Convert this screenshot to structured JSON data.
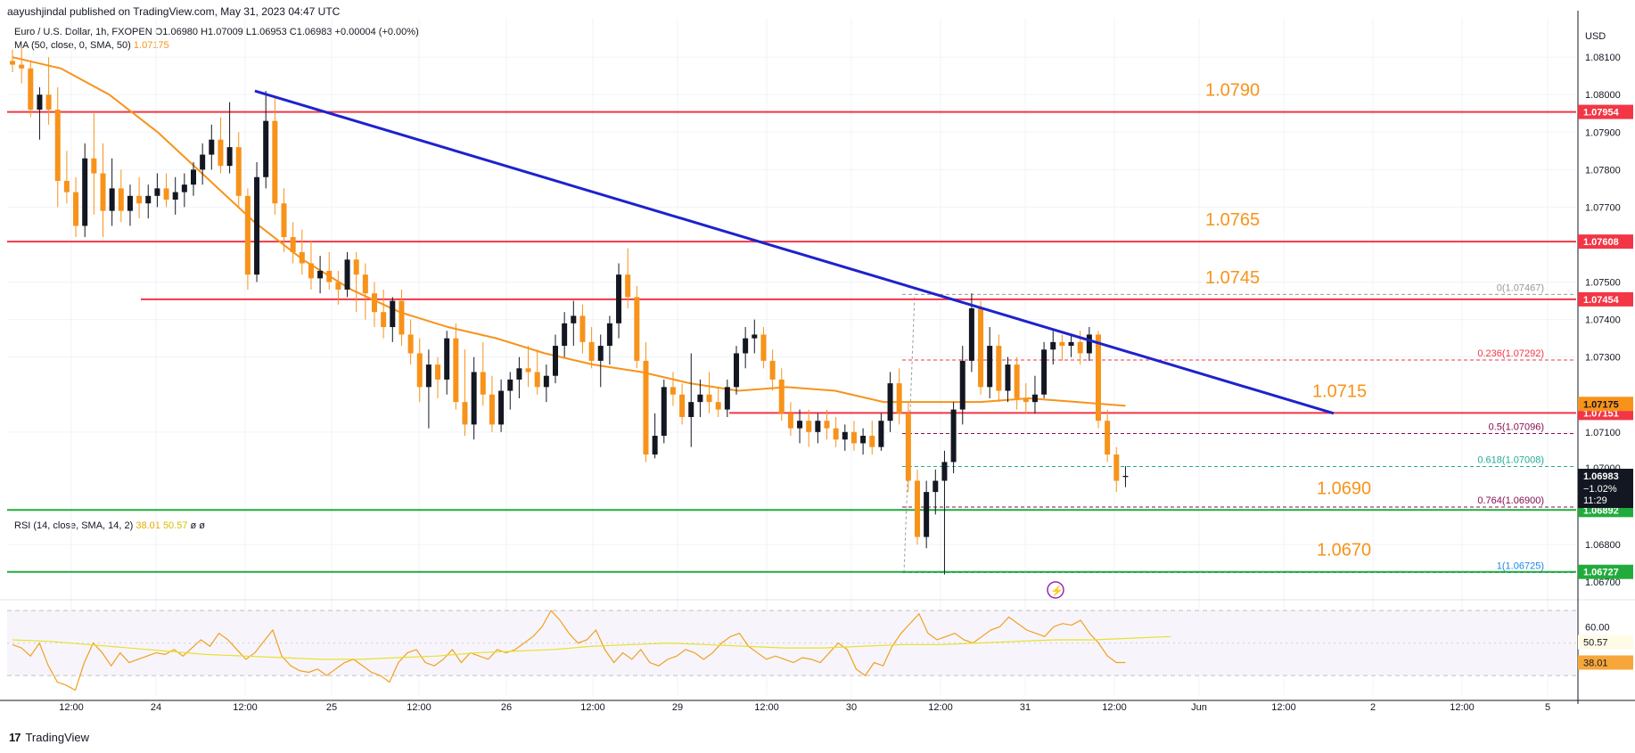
{
  "header": "aayushjindal published on TradingView.com, May 31, 2023 04:47 UTC",
  "legend": {
    "line1": "Euro / U.S. Dollar, 1h, FXOPEN  O1.06980  H1.07009  L1.06953  C1.06983  +0.00004 (+0.00%)",
    "line2_label": "MA (50, close, 0, SMA, 50)",
    "line2_value": "1.07175",
    "rsi_label": "RSI (14, close, SMA, 14, 2)",
    "rsi_value": "38.01",
    "rsi_ma_value": "50.57",
    "rsi_tail": "ø  ø"
  },
  "footer": {
    "brand": "TradingView",
    "logo": "17"
  },
  "colors": {
    "up": "#131722",
    "down": "#f7931a",
    "ma": "#f7931a",
    "trend": "#1e22cc",
    "resistance": "#f23645",
    "support": "#22ab3d",
    "label": "#f7931a",
    "rsi": "#f0a020",
    "rsi_ma": "#e8e030"
  },
  "chart_data": {
    "type": "candlestick",
    "symbol": "Euro / U.S. Dollar",
    "timeframe": "1h",
    "currency": "USD",
    "ylim": [
      1.06655,
      1.08205
    ],
    "y_ticks": [
      "1.08100",
      "1.08000",
      "1.07900",
      "1.07800",
      "1.07700",
      "1.07500",
      "1.07400",
      "1.07300",
      "1.07100",
      "1.06800"
    ],
    "y_tick_values": [
      1.081,
      1.08,
      1.079,
      1.078,
      1.077,
      1.075,
      1.074,
      1.073,
      1.071,
      1.068
    ],
    "y_partial_ticks": [
      "1.07000",
      "1.06700"
    ],
    "x_ticks": [
      "12:00",
      "24",
      "12:00",
      "25",
      "12:00",
      "26",
      "12:00",
      "29",
      "12:00",
      "30",
      "12:00",
      "31",
      "12:00",
      "Jun",
      "12:00",
      "2",
      "12:00",
      "5"
    ],
    "candles": [
      [
        1.0809,
        1.0812,
        1.0806,
        1.0808
      ],
      [
        1.0808,
        1.0813,
        1.0803,
        1.0807
      ],
      [
        1.0807,
        1.0809,
        1.0794,
        1.0796
      ],
      [
        1.0796,
        1.0802,
        1.0788,
        1.08
      ],
      [
        1.08,
        1.081,
        1.0792,
        1.0796
      ],
      [
        1.0796,
        1.0802,
        1.077,
        1.0777
      ],
      [
        1.0777,
        1.0785,
        1.0771,
        1.0774
      ],
      [
        1.0774,
        1.0778,
        1.0762,
        1.0765
      ],
      [
        1.0765,
        1.0787,
        1.0762,
        1.0783
      ],
      [
        1.0783,
        1.0795,
        1.0768,
        1.0779
      ],
      [
        1.0779,
        1.0787,
        1.0762,
        1.0769
      ],
      [
        1.0769,
        1.0783,
        1.0765,
        1.0775
      ],
      [
        1.0775,
        1.078,
        1.0766,
        1.0769
      ],
      [
        1.0769,
        1.0776,
        1.0765,
        1.0773
      ],
      [
        1.0773,
        1.0778,
        1.0767,
        1.0771
      ],
      [
        1.0771,
        1.0776,
        1.0767,
        1.0773
      ],
      [
        1.0773,
        1.0779,
        1.077,
        1.0775
      ],
      [
        1.0775,
        1.0779,
        1.077,
        1.0772
      ],
      [
        1.0772,
        1.0778,
        1.0768,
        1.0774
      ],
      [
        1.0774,
        1.0779,
        1.077,
        1.0776
      ],
      [
        1.0776,
        1.0782,
        1.0773,
        1.078
      ],
      [
        1.078,
        1.0787,
        1.0776,
        1.0784
      ],
      [
        1.0784,
        1.0792,
        1.078,
        1.0788
      ],
      [
        1.0788,
        1.0794,
        1.0779,
        1.0781
      ],
      [
        1.0781,
        1.0798,
        1.0779,
        1.0786
      ],
      [
        1.0786,
        1.079,
        1.077,
        1.0773
      ],
      [
        1.0773,
        1.0775,
        1.0748,
        1.0752
      ],
      [
        1.0752,
        1.0782,
        1.075,
        1.0778
      ],
      [
        1.0778,
        1.0801,
        1.0775,
        1.0793
      ],
      [
        1.0793,
        1.0799,
        1.0768,
        1.0771
      ],
      [
        1.0771,
        1.0775,
        1.0758,
        1.0762
      ],
      [
        1.0762,
        1.0766,
        1.0755,
        1.0758
      ],
      [
        1.0758,
        1.0764,
        1.0752,
        1.0755
      ],
      [
        1.0755,
        1.0761,
        1.0748,
        1.0751
      ],
      [
        1.0751,
        1.0757,
        1.0747,
        1.0753
      ],
      [
        1.0753,
        1.0758,
        1.0748,
        1.075
      ],
      [
        1.075,
        1.0753,
        1.0744,
        1.0748
      ],
      [
        1.0748,
        1.0758,
        1.0746,
        1.0756
      ],
      [
        1.0756,
        1.0758,
        1.0742,
        1.0752
      ],
      [
        1.0752,
        1.0755,
        1.074,
        1.0747
      ],
      [
        1.0747,
        1.075,
        1.0738,
        1.0742
      ],
      [
        1.0742,
        1.0748,
        1.0735,
        1.0738
      ],
      [
        1.0738,
        1.0746,
        1.0734,
        1.0745
      ],
      [
        1.0745,
        1.0748,
        1.0733,
        1.0736
      ],
      [
        1.0736,
        1.074,
        1.0728,
        1.0731
      ],
      [
        1.0731,
        1.0735,
        1.0718,
        1.0722
      ],
      [
        1.0722,
        1.0732,
        1.0711,
        1.0728
      ],
      [
        1.0728,
        1.073,
        1.0719,
        1.0724
      ],
      [
        1.0724,
        1.0737,
        1.072,
        1.0735
      ],
      [
        1.0735,
        1.0739,
        1.0716,
        1.0718
      ],
      [
        1.0718,
        1.0732,
        1.0709,
        1.0712
      ],
      [
        1.0712,
        1.073,
        1.0708,
        1.0726
      ],
      [
        1.0726,
        1.0734,
        1.0717,
        1.072
      ],
      [
        1.072,
        1.0725,
        1.071,
        1.0712
      ],
      [
        1.0712,
        1.0724,
        1.071,
        1.0721
      ],
      [
        1.0721,
        1.0726,
        1.0716,
        1.0724
      ],
      [
        1.0724,
        1.073,
        1.0719,
        1.0727
      ],
      [
        1.0727,
        1.0733,
        1.0722,
        1.0726
      ],
      [
        1.0726,
        1.0732,
        1.072,
        1.0722
      ],
      [
        1.0722,
        1.0728,
        1.0718,
        1.0725
      ],
      [
        1.0725,
        1.0736,
        1.0723,
        1.0733
      ],
      [
        1.0733,
        1.0742,
        1.073,
        1.0739
      ],
      [
        1.0739,
        1.0745,
        1.0733,
        1.0741
      ],
      [
        1.0741,
        1.0744,
        1.0731,
        1.0734
      ],
      [
        1.0734,
        1.0738,
        1.0727,
        1.0729
      ],
      [
        1.0729,
        1.0736,
        1.0722,
        1.0733
      ],
      [
        1.0733,
        1.0741,
        1.0728,
        1.0739
      ],
      [
        1.0739,
        1.0755,
        1.0735,
        1.0752
      ],
      [
        1.0752,
        1.0759,
        1.0743,
        1.0746
      ],
      [
        1.0746,
        1.0749,
        1.0727,
        1.0729
      ],
      [
        1.0729,
        1.0734,
        1.0702,
        1.0704
      ],
      [
        1.0704,
        1.0715,
        1.0703,
        1.0709
      ],
      [
        1.0709,
        1.0724,
        1.0707,
        1.0722
      ],
      [
        1.0722,
        1.0726,
        1.0717,
        1.072
      ],
      [
        1.072,
        1.0723,
        1.0712,
        1.0714
      ],
      [
        1.0714,
        1.0731,
        1.0706,
        1.0718
      ],
      [
        1.0718,
        1.0724,
        1.0714,
        1.072
      ],
      [
        1.072,
        1.0726,
        1.0715,
        1.0718
      ],
      [
        1.0718,
        1.0722,
        1.0714,
        1.0716
      ],
      [
        1.0716,
        1.0724,
        1.0714,
        1.0722
      ],
      [
        1.0722,
        1.0733,
        1.072,
        1.0731
      ],
      [
        1.0731,
        1.0738,
        1.0727,
        1.0735
      ],
      [
        1.0735,
        1.074,
        1.0731,
        1.0736
      ],
      [
        1.0736,
        1.0738,
        1.0727,
        1.0729
      ],
      [
        1.0729,
        1.0732,
        1.0721,
        1.0724
      ],
      [
        1.0724,
        1.0727,
        1.0713,
        1.0715
      ],
      [
        1.0715,
        1.0718,
        1.0709,
        1.0711
      ],
      [
        1.0711,
        1.0716,
        1.0707,
        1.0713
      ],
      [
        1.0713,
        1.0716,
        1.0706,
        1.071
      ],
      [
        1.071,
        1.0715,
        1.0707,
        1.0713
      ],
      [
        1.0713,
        1.0716,
        1.0708,
        1.0711
      ],
      [
        1.0711,
        1.0714,
        1.0706,
        1.0708
      ],
      [
        1.0708,
        1.0712,
        1.0705,
        1.071
      ],
      [
        1.071,
        1.0713,
        1.0705,
        1.0707
      ],
      [
        1.0707,
        1.0711,
        1.0704,
        1.0709
      ],
      [
        1.0709,
        1.0713,
        1.0704,
        1.0706
      ],
      [
        1.0706,
        1.0715,
        1.0705,
        1.0713
      ],
      [
        1.0713,
        1.0726,
        1.071,
        1.0723
      ],
      [
        1.0723,
        1.0727,
        1.0712,
        1.0715
      ],
      [
        1.0715,
        1.0718,
        1.0694,
        1.0697
      ],
      [
        1.0697,
        1.07,
        1.068,
        1.0682
      ],
      [
        1.0682,
        1.0697,
        1.0679,
        1.0694
      ],
      [
        1.0694,
        1.07,
        1.0688,
        1.0697
      ],
      [
        1.0697,
        1.0705,
        1.0672,
        1.0702
      ],
      [
        1.0702,
        1.0718,
        1.0699,
        1.0716
      ],
      [
        1.0716,
        1.0733,
        1.0712,
        1.0729
      ],
      [
        1.0729,
        1.0747,
        1.0726,
        1.0743
      ],
      [
        1.0743,
        1.0745,
        1.072,
        1.0722
      ],
      [
        1.0722,
        1.0738,
        1.0719,
        1.0733
      ],
      [
        1.0733,
        1.0736,
        1.0718,
        1.0721
      ],
      [
        1.0721,
        1.073,
        1.0718,
        1.0728
      ],
      [
        1.0728,
        1.073,
        1.0716,
        1.0719
      ],
      [
        1.0719,
        1.0723,
        1.0715,
        1.0718
      ],
      [
        1.0718,
        1.0725,
        1.0715,
        1.072
      ],
      [
        1.072,
        1.0734,
        1.0719,
        1.0732
      ],
      [
        1.0732,
        1.0737,
        1.0728,
        1.0734
      ],
      [
        1.0734,
        1.0736,
        1.0729,
        1.0733
      ],
      [
        1.0733,
        1.0736,
        1.073,
        1.0734
      ],
      [
        1.0734,
        1.0737,
        1.0728,
        1.0731
      ],
      [
        1.0731,
        1.0738,
        1.0729,
        1.0736
      ],
      [
        1.0736,
        1.0737,
        1.0711,
        1.0713
      ],
      [
        1.0713,
        1.0716,
        1.0702,
        1.0704
      ],
      [
        1.0704,
        1.0706,
        1.0694,
        1.0697
      ],
      [
        1.0698,
        1.07009,
        1.06953,
        1.06983
      ]
    ],
    "ma_series": [
      1.081,
      1.0807,
      1.08,
      1.079,
      1.0778,
      1.0766,
      1.0756,
      1.0748,
      1.0742,
      1.0738,
      1.0735,
      1.0731,
      1.0728,
      1.0726,
      1.0723,
      1.0721,
      1.0722,
      1.0721,
      1.0718,
      1.0718,
      1.0718,
      1.0719,
      1.0718,
      1.0717
    ],
    "ma_value": 1.07175,
    "trendline": {
      "start": {
        "candle": 26,
        "price": 1.0801
      },
      "end": {
        "candle": 146,
        "price": 1.0715
      }
    },
    "levels": [
      {
        "label": "1.0790",
        "axis_label": "1.07954",
        "price": 1.07954,
        "kind": "resistance"
      },
      {
        "label": "1.0765",
        "axis_label": "1.07608",
        "price": 1.07608,
        "kind": "resistance"
      },
      {
        "label": "1.0745",
        "axis_label": "1.07454",
        "price": 1.07454,
        "kind": "resistance"
      },
      {
        "label": "1.0715",
        "axis_label": "1.07151",
        "price": 1.07151,
        "kind": "resistance"
      },
      {
        "label": "1.0690",
        "axis_label": "1.06892",
        "price": 1.06892,
        "kind": "support"
      },
      {
        "label": "1.0670",
        "axis_label": "1.06727",
        "price": 1.06727,
        "kind": "support"
      }
    ],
    "fibonacci": [
      {
        "label": "0(1.07467)",
        "price": 1.07467,
        "color": "#999999"
      },
      {
        "label": "0.236(1.07292)",
        "price": 1.07292,
        "color": "#f23645"
      },
      {
        "label": "0.5(1.07096)",
        "price": 1.07096,
        "color": "#880e4f"
      },
      {
        "label": "0.618(1.07008)",
        "price": 1.07008,
        "color": "#22ab94"
      },
      {
        "label": "0.764(1.06900)",
        "price": 1.069,
        "color": "#880e4f"
      },
      {
        "label": "1(1.06725)",
        "price": 1.06725,
        "color": "#1e88e5"
      }
    ],
    "price_tags": [
      {
        "text": "1.07175",
        "price": 1.07175,
        "bg": "#f7931a",
        "fg": "#131722"
      },
      {
        "text": "1.06983",
        "price": 1.06983,
        "bg": "#131722",
        "fg": "#ffffff",
        "extra": [
          "−1.02%",
          "11:29"
        ]
      }
    ],
    "rsi": {
      "ylim": [
        18,
        75
      ],
      "ticks": [
        "60.00"
      ],
      "tick_values": [
        60
      ],
      "bands": [
        70,
        30
      ],
      "value": 38.01,
      "ma_value": 50.57,
      "series": [
        49,
        47,
        42,
        50,
        36,
        26,
        24,
        21,
        38,
        50,
        44,
        36,
        44,
        38,
        40,
        42,
        44,
        43,
        46,
        42,
        47,
        52,
        48,
        56,
        52,
        46,
        40,
        44,
        51,
        58,
        42,
        36,
        33,
        32,
        34,
        30,
        34,
        38,
        40,
        36,
        32,
        30,
        26,
        38,
        44,
        46,
        38,
        36,
        40,
        46,
        38,
        44,
        42,
        40,
        46,
        44,
        46,
        50,
        54,
        60,
        70,
        64,
        56,
        50,
        52,
        58,
        46,
        38,
        44,
        40,
        46,
        38,
        36,
        40,
        42,
        46,
        44,
        40,
        44,
        50,
        54,
        56,
        48,
        44,
        40,
        42,
        40,
        38,
        41,
        40,
        38,
        44,
        50,
        46,
        34,
        30,
        38,
        36,
        48,
        56,
        62,
        68,
        56,
        52,
        54,
        56,
        52,
        50,
        54,
        58,
        60,
        66,
        62,
        58,
        56,
        54,
        60,
        62,
        61,
        64,
        56,
        50,
        42,
        38,
        38
      ],
      "ma_series": [
        52,
        51,
        49,
        47,
        45,
        43,
        42,
        41,
        40,
        40,
        41,
        42,
        44,
        45,
        46,
        48,
        49,
        50,
        49,
        48,
        47,
        47,
        48,
        49,
        49,
        50,
        51,
        52,
        52,
        53,
        54
      ]
    },
    "lightning_badge": "⚡"
  }
}
